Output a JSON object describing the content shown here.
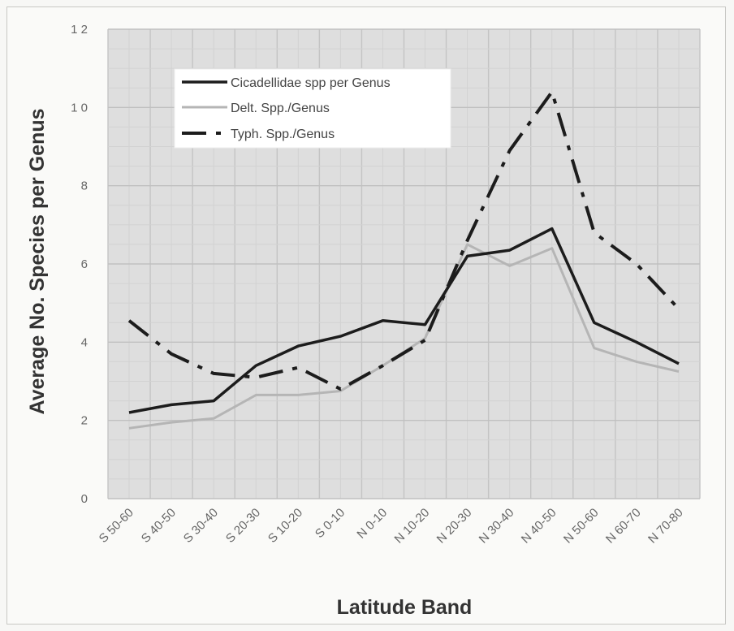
{
  "chart_data": {
    "type": "line",
    "title": "",
    "xlabel": "Latitude Band",
    "ylabel": "Average No. Species per Genus",
    "ylim": [
      0,
      12
    ],
    "yticks": [
      0,
      2,
      4,
      6,
      8,
      10,
      12
    ],
    "ytick_labels": [
      "0",
      "2",
      "4",
      "6",
      "8",
      "1 0",
      "1 2"
    ],
    "grid": true,
    "legend_position": "top-left",
    "categories": [
      "S 50-60",
      "S 40-50",
      "S 30-40",
      "S 20-30",
      "S 10-20",
      "S 0-10",
      "N 0-10",
      "N 10-20",
      "N 20-30",
      "N 30-40",
      "N 40-50",
      "N 50-60",
      "N 60-70",
      "N 70-80"
    ],
    "series": [
      {
        "name": "Cicadellidae spp per Genus",
        "color": "#1c1c1c",
        "style": "solid",
        "values": [
          2.2,
          2.4,
          2.5,
          3.4,
          3.9,
          4.15,
          4.55,
          4.45,
          6.2,
          6.35,
          6.9,
          4.5,
          4.0,
          3.45
        ]
      },
      {
        "name": "Delt. Spp./Genus",
        "color": "#b5b5b5",
        "style": "solid",
        "values": [
          1.8,
          1.95,
          2.05,
          2.65,
          2.65,
          2.75,
          3.4,
          4.1,
          6.5,
          5.95,
          6.4,
          3.85,
          3.5,
          3.25
        ]
      },
      {
        "name": "Typh. Spp./Genus",
        "color": "#1c1c1c",
        "style": "dashdot",
        "values": [
          4.55,
          3.7,
          3.2,
          3.1,
          3.35,
          2.8,
          3.4,
          4.05,
          6.6,
          8.9,
          10.4,
          6.8,
          6.0,
          4.85
        ]
      }
    ]
  }
}
